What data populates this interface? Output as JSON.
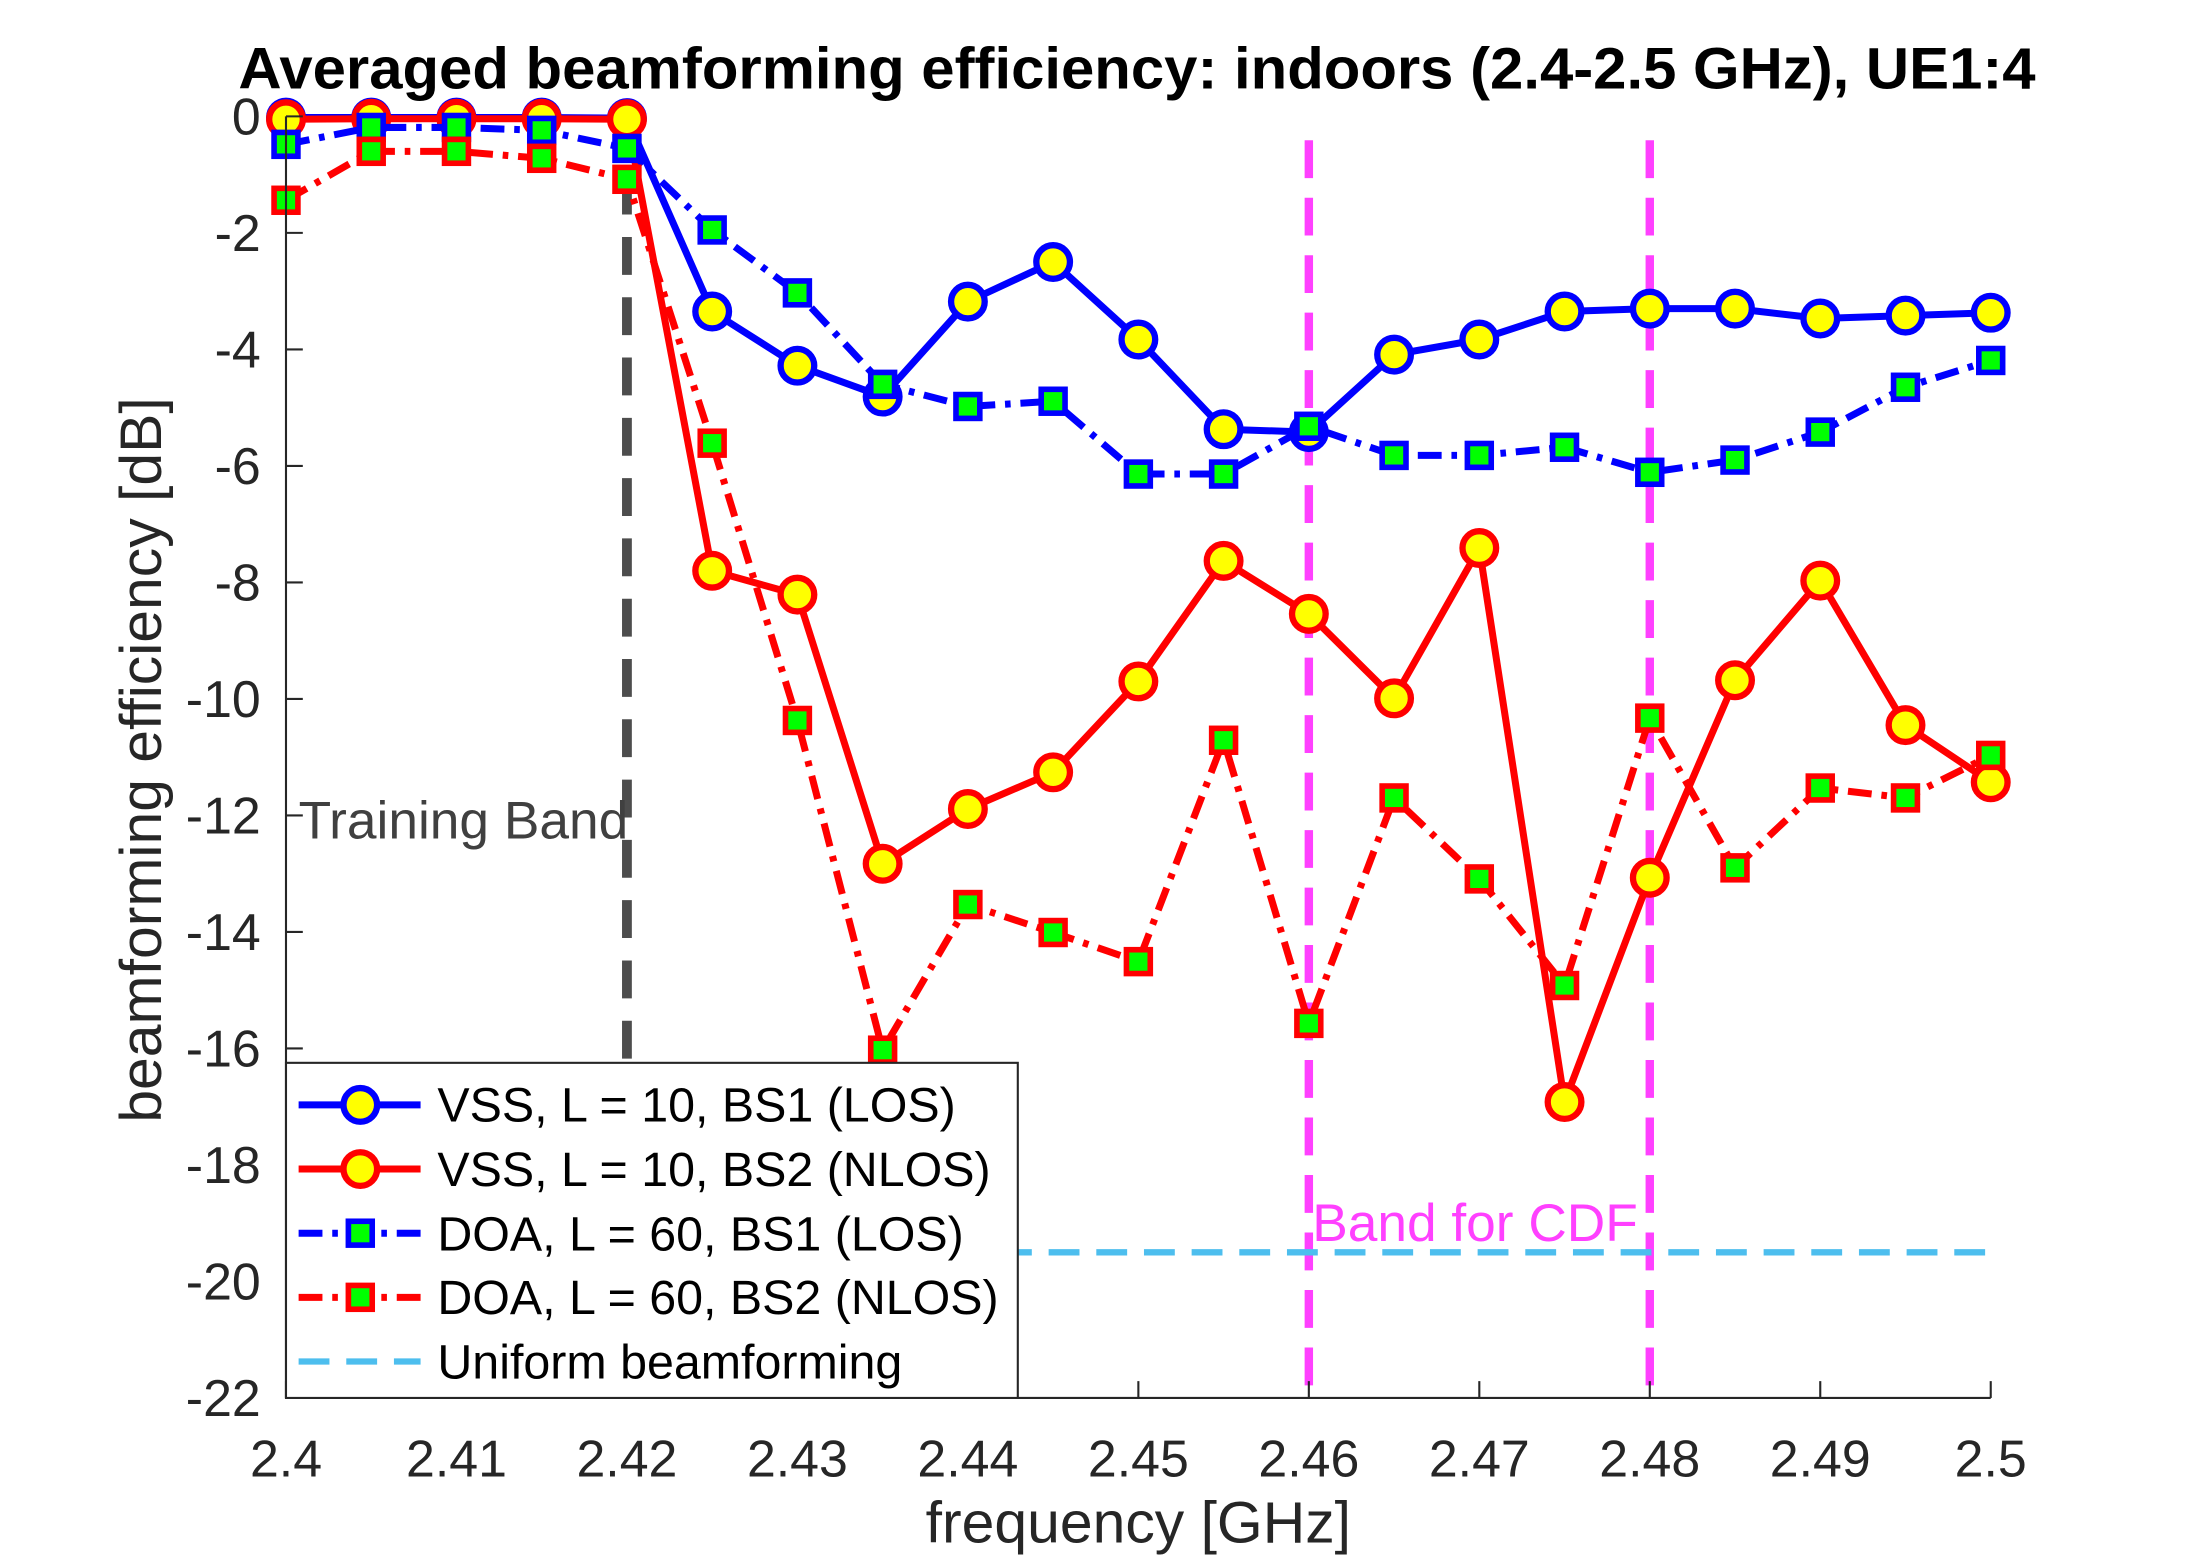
{
  "chart_data": {
    "type": "line",
    "title": "Averaged beamforming efficiency: indoors (2.4-2.5 GHz), UE1:4",
    "xlabel": "frequency [GHz]",
    "ylabel": "beamforming efficiency [dB]",
    "xlim": [
      2.4,
      2.5
    ],
    "ylim": [
      -22,
      0
    ],
    "grid": false,
    "xticks": [
      2.4,
      2.41,
      2.42,
      2.43,
      2.44,
      2.45,
      2.46,
      2.47,
      2.48,
      2.49,
      2.5
    ],
    "xtick_labels": [
      "2.4",
      "2.41",
      "2.42",
      "2.43",
      "2.44",
      "2.45",
      "2.46",
      "2.47",
      "2.48",
      "2.49",
      "2.5"
    ],
    "yticks": [
      0,
      -2,
      -4,
      -6,
      -8,
      -10,
      -12,
      -14,
      -16,
      -18,
      -20,
      -22
    ],
    "ytick_labels": [
      "0",
      "-2",
      "-4",
      "-6",
      "-8",
      "-10",
      "-12",
      "-14",
      "-16",
      "-18",
      "-20",
      "-22"
    ],
    "x": [
      2.4,
      2.405,
      2.41,
      2.415,
      2.42,
      2.425,
      2.43,
      2.435,
      2.44,
      2.445,
      2.45,
      2.455,
      2.46,
      2.465,
      2.47,
      2.475,
      2.48,
      2.485,
      2.49,
      2.495,
      2.5
    ],
    "series": [
      {
        "name": "VSS, L = 10, BS1 (LOS)",
        "line_color": "#0000FF",
        "marker_face": "#FFFF00",
        "values": [
          -0.02,
          -0.02,
          -0.02,
          -0.02,
          -0.03,
          -3.35,
          -4.28,
          -4.81,
          -3.18,
          -2.5,
          -3.83,
          -5.37,
          -5.42,
          -4.09,
          -3.83,
          -3.35,
          -3.3,
          -3.3,
          -3.47,
          -3.42,
          -3.37
        ]
      },
      {
        "name": "VSS, L = 10, BS2 (NLOS)",
        "line_color": "#FF0000",
        "marker_face": "#FFFF00",
        "values": [
          -0.05,
          -0.04,
          -0.04,
          -0.04,
          -0.05,
          -7.8,
          -8.21,
          -12.83,
          -11.89,
          -11.26,
          -9.7,
          -7.63,
          -8.54,
          -9.99,
          -7.41,
          -16.92,
          -13.07,
          -9.68,
          -7.97,
          -10.45,
          -11.43
        ]
      },
      {
        "name": "DOA, L = 60, BS1 (LOS)",
        "line_color": "#0000FF",
        "marker_face": "#00FF00",
        "values": [
          -0.48,
          -0.19,
          -0.19,
          -0.24,
          -0.55,
          -1.95,
          -3.03,
          -4.6,
          -4.98,
          -4.89,
          -6.14,
          -6.14,
          -5.32,
          -5.82,
          -5.82,
          -5.68,
          -6.11,
          -5.9,
          -5.42,
          -4.65,
          -4.19
        ]
      },
      {
        "name": "DOA, L = 60, BS2 (NLOS)",
        "line_color": "#FF0000",
        "marker_face": "#00FF00",
        "values": [
          -1.44,
          -0.6,
          -0.6,
          -0.72,
          -1.08,
          -5.61,
          -10.37,
          -16.03,
          -13.53,
          -14.01,
          -14.51,
          -10.71,
          -15.57,
          -11.7,
          -13.09,
          -14.92,
          -10.33,
          -12.9,
          -11.53,
          -11.7,
          -10.97
        ]
      },
      {
        "name": "Uniform beamforming",
        "line_color": "#4DBEEE",
        "x": [
          2.4,
          2.5
        ],
        "values": [
          -19.5,
          -19.5
        ]
      }
    ],
    "vertical_lines": [
      {
        "x": 2.42,
        "color": "#4D4D4D"
      },
      {
        "x": 2.46,
        "color": "#FF40FF"
      },
      {
        "x": 2.48,
        "color": "#FF40FF"
      }
    ],
    "annotations": [
      {
        "text": "Training Band",
        "color": "#404040"
      },
      {
        "text": "Band for CDF",
        "color": "#FF40FF"
      }
    ]
  }
}
